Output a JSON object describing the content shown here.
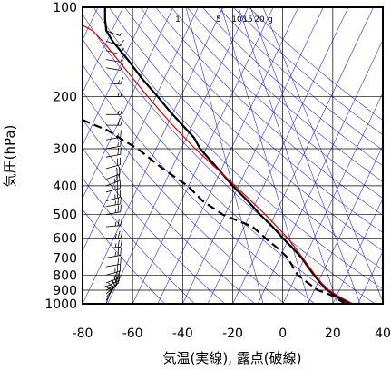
{
  "chart_data": {
    "type": "line",
    "xlabel": "気温(実線), 露点(破線)",
    "ylabel": "気圧(hPa)",
    "xlim": [
      -80,
      40
    ],
    "ylim": [
      1000,
      100
    ],
    "y_scale": "log",
    "x_ticks": [
      "-80",
      "-60",
      "-40",
      "-20",
      "0",
      "20",
      "40"
    ],
    "x_tick_values": [
      -80,
      -60,
      -40,
      -20,
      0,
      20,
      40
    ],
    "y_ticks": [
      "100",
      "200",
      "300",
      "400",
      "500",
      "600",
      "700",
      "800",
      "900",
      "1000"
    ],
    "y_tick_values": [
      100,
      200,
      300,
      400,
      500,
      600,
      700,
      800,
      900,
      1000
    ],
    "mixing_ratio_labels": [
      "1",
      "5",
      "10",
      "15",
      "20",
      "g"
    ],
    "grid": true,
    "colors": {
      "frame": "#000000",
      "grid": "#000000",
      "reference_lines": "#2222cc",
      "temperature": "#000000",
      "dewpoint": "#000000",
      "reference_profile": "#dd0000",
      "barbs": "#000000"
    },
    "series": [
      {
        "style": "solid",
        "points": [
          [
            1000,
            27
          ],
          [
            975,
            24.5
          ],
          [
            950,
            22
          ],
          [
            925,
            20
          ],
          [
            900,
            18
          ],
          [
            850,
            15
          ],
          [
            800,
            12.5
          ],
          [
            750,
            10
          ],
          [
            700,
            7.5
          ],
          [
            650,
            4
          ],
          [
            600,
            0
          ],
          [
            550,
            -4
          ],
          [
            500,
            -9
          ],
          [
            450,
            -14
          ],
          [
            400,
            -20
          ],
          [
            350,
            -26
          ],
          [
            300,
            -33
          ],
          [
            275,
            -35.5
          ],
          [
            250,
            -40
          ],
          [
            225,
            -45
          ],
          [
            200,
            -50
          ],
          [
            175,
            -56
          ],
          [
            150,
            -62
          ],
          [
            130,
            -68
          ],
          [
            120,
            -70.5
          ],
          [
            110,
            -71
          ],
          [
            100,
            -71
          ]
        ]
      },
      {
        "style": "dashed",
        "points": [
          [
            1000,
            25
          ],
          [
            975,
            23
          ],
          [
            950,
            21
          ],
          [
            925,
            18
          ],
          [
            900,
            14
          ],
          [
            850,
            10
          ],
          [
            800,
            6
          ],
          [
            750,
            4
          ],
          [
            700,
            2
          ],
          [
            650,
            -2
          ],
          [
            600,
            -7
          ],
          [
            550,
            -12
          ],
          [
            500,
            -24
          ],
          [
            450,
            -32
          ],
          [
            400,
            -38
          ],
          [
            350,
            -48
          ],
          [
            300,
            -58
          ],
          [
            280,
            -64
          ],
          [
            260,
            -70
          ],
          [
            250,
            -75
          ],
          [
            240,
            -80
          ]
        ]
      },
      {
        "style": "solid-red",
        "points": [
          [
            1000,
            28
          ],
          [
            950,
            23
          ],
          [
            900,
            18.5
          ],
          [
            850,
            15.5
          ],
          [
            800,
            13
          ],
          [
            700,
            8
          ],
          [
            600,
            2
          ],
          [
            500,
            -7
          ],
          [
            400,
            -19
          ],
          [
            300,
            -35
          ],
          [
            250,
            -44
          ],
          [
            200,
            -54
          ],
          [
            150,
            -66
          ],
          [
            130,
            -72
          ],
          [
            120,
            -76
          ],
          [
            115,
            -80
          ]
        ]
      }
    ],
    "wind_barbs": [
      {
        "p": 1000,
        "dir": 200,
        "speed": 10
      },
      {
        "p": 975,
        "dir": 210,
        "speed": 15
      },
      {
        "p": 950,
        "dir": 220,
        "speed": 15
      },
      {
        "p": 925,
        "dir": 230,
        "speed": 20
      },
      {
        "p": 900,
        "dir": 240,
        "speed": 20
      },
      {
        "p": 875,
        "dir": 245,
        "speed": 20
      },
      {
        "p": 850,
        "dir": 250,
        "speed": 25
      },
      {
        "p": 800,
        "dir": 255,
        "speed": 25
      },
      {
        "p": 750,
        "dir": 260,
        "speed": 20
      },
      {
        "p": 700,
        "dir": 260,
        "speed": 25
      },
      {
        "p": 650,
        "dir": 265,
        "speed": 25
      },
      {
        "p": 600,
        "dir": 270,
        "speed": 25
      },
      {
        "p": 550,
        "dir": 265,
        "speed": 25
      },
      {
        "p": 500,
        "dir": 260,
        "speed": 25
      },
      {
        "p": 470,
        "dir": 260,
        "speed": 25
      },
      {
        "p": 450,
        "dir": 255,
        "speed": 25
      },
      {
        "p": 420,
        "dir": 255,
        "speed": 25
      },
      {
        "p": 400,
        "dir": 250,
        "speed": 25
      },
      {
        "p": 380,
        "dir": 250,
        "speed": 20
      },
      {
        "p": 350,
        "dir": 255,
        "speed": 20
      },
      {
        "p": 320,
        "dir": 260,
        "speed": 20
      },
      {
        "p": 300,
        "dir": 260,
        "speed": 15
      },
      {
        "p": 280,
        "dir": 260,
        "speed": 15
      },
      {
        "p": 250,
        "dir": 270,
        "speed": 20
      },
      {
        "p": 230,
        "dir": 270,
        "speed": 15
      },
      {
        "p": 200,
        "dir": 270,
        "speed": 15
      },
      {
        "p": 180,
        "dir": 275,
        "speed": 15
      },
      {
        "p": 160,
        "dir": 280,
        "speed": 10
      },
      {
        "p": 150,
        "dir": 280,
        "speed": 10
      },
      {
        "p": 140,
        "dir": 285,
        "speed": 10
      },
      {
        "p": 130,
        "dir": 290,
        "speed": 10
      },
      {
        "p": 120,
        "dir": 290,
        "speed": 5
      }
    ]
  }
}
